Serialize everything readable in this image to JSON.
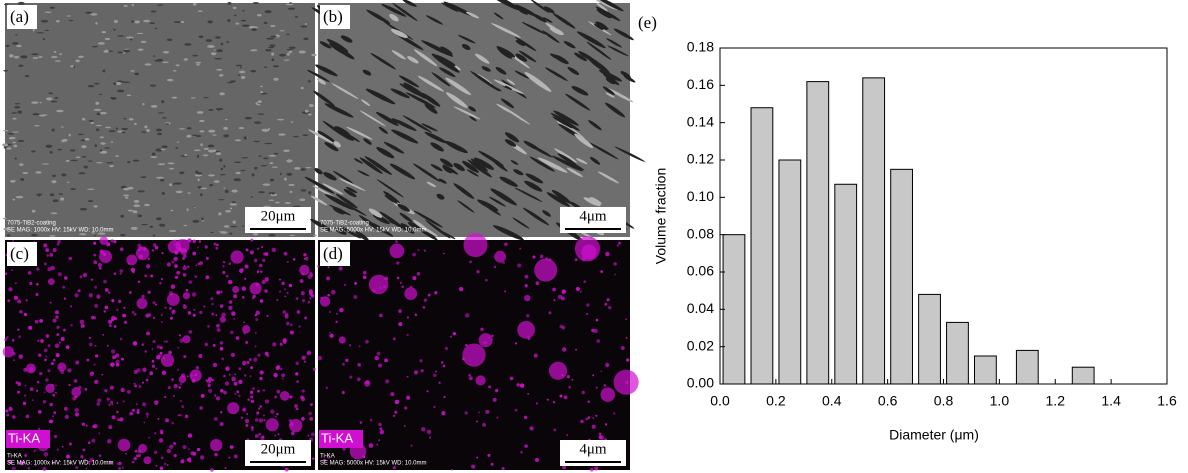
{
  "panels": [
    {
      "label": "(a)",
      "scale": "20μm",
      "caption": [
        "7075-TiB2-coating",
        "SE  MAG: 1000x  HV: 15kV  WD: 10.0mm"
      ]
    },
    {
      "label": "(b)",
      "scale": "4μm",
      "caption": [
        "7075-TiB2-coating",
        "SE  MAG: 5000x  HV: 15kV  WD: 10.0mm"
      ]
    },
    {
      "label": "(c)",
      "tag": "Ti-KA",
      "scale": "20μm",
      "caption": [
        "Ti-KA",
        "SE  MAG: 1000x  HV: 15kV  WD: 10.0mm"
      ]
    },
    {
      "label": "(d)",
      "tag": "Ti-KA",
      "scale": "4μm",
      "caption": [
        "Ti-KA",
        "SE  MAG: 5000x  HV: 15kV  WD: 10.0mm"
      ]
    }
  ],
  "chart_data": {
    "type": "bar",
    "panel_label": "(e)",
    "xlabel": "Diameter (μm)",
    "ylabel": "Volume fraction",
    "x": [
      0.05,
      0.15,
      0.25,
      0.35,
      0.45,
      0.55,
      0.65,
      0.75,
      0.85,
      0.95,
      1.1,
      1.3
    ],
    "values": [
      0.08,
      0.148,
      0.12,
      0.162,
      0.107,
      0.164,
      0.115,
      0.048,
      0.033,
      0.015,
      0.018,
      0.009
    ],
    "color": "#c8c8c8",
    "xlim": [
      0,
      1.6
    ],
    "ylim": [
      0,
      0.18
    ],
    "xticks": [
      {
        "value": 0,
        "label": "0.0"
      },
      {
        "value": 0.2,
        "label": "0.2"
      },
      {
        "value": 0.4,
        "label": "0.4"
      },
      {
        "value": 0.6,
        "label": "0.6"
      },
      {
        "value": 0.8,
        "label": "0.8"
      },
      {
        "value": 1,
        "label": "1.0"
      },
      {
        "value": 1.2,
        "label": "1.2"
      },
      {
        "value": 1.4,
        "label": "1.4"
      },
      {
        "value": 1.6,
        "label": "1.6"
      }
    ],
    "yticks": [
      {
        "value": 0,
        "label": "0.00"
      },
      {
        "value": 0.02,
        "label": "0.02"
      },
      {
        "value": 0.04,
        "label": "0.04"
      },
      {
        "value": 0.06,
        "label": "0.06"
      },
      {
        "value": 0.08,
        "label": "0.08"
      },
      {
        "value": 0.1,
        "label": "0.10"
      },
      {
        "value": 0.12,
        "label": "0.12"
      },
      {
        "value": 0.14,
        "label": "0.14"
      },
      {
        "value": 0.16,
        "label": "0.16"
      },
      {
        "value": 0.18,
        "label": "0.18"
      }
    ]
  }
}
